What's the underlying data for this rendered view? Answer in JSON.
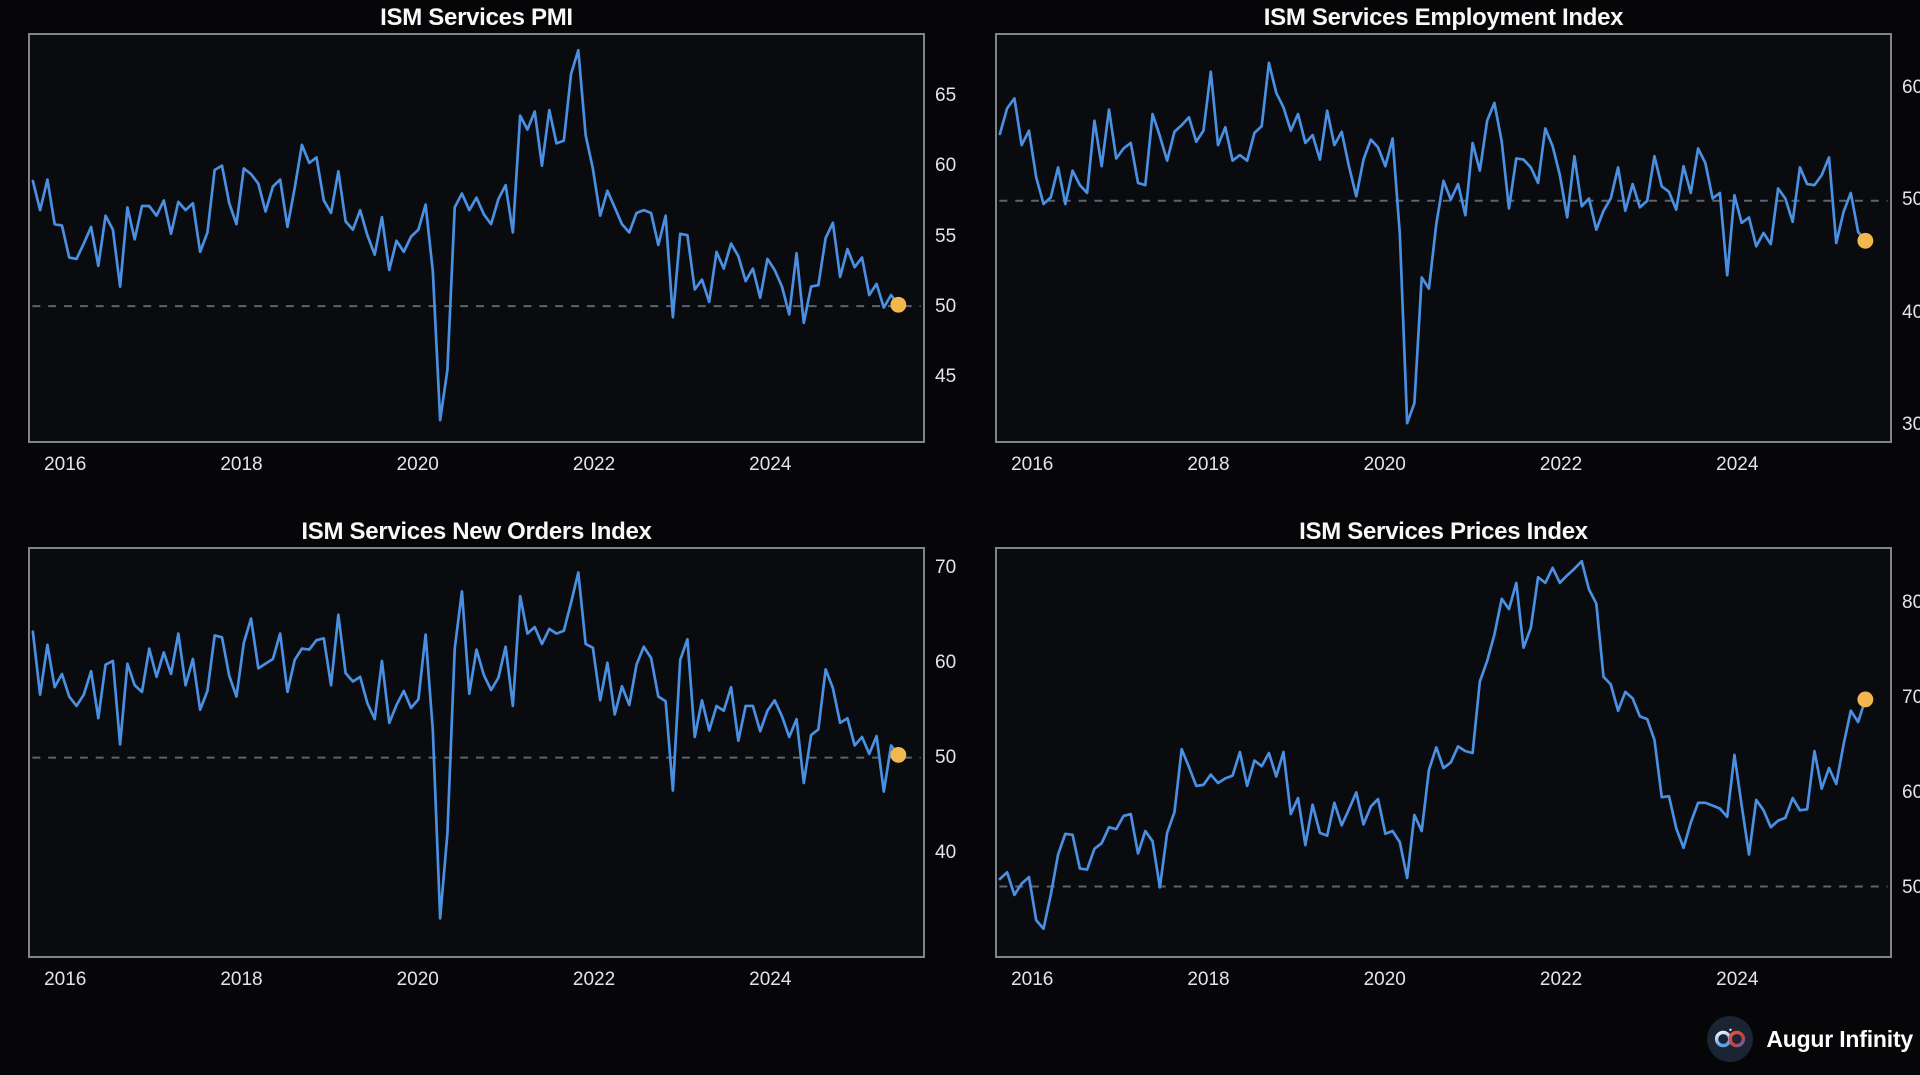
{
  "footer": {
    "brand": "Augur Infinity",
    "logo_icon": "infinity-icon"
  },
  "colors": {
    "page_bg": "#060608",
    "plot_bg": "#0a0b0f",
    "plot_border": "#7e848c",
    "line": "#4a90e2",
    "latest_dot": "#f2b74e",
    "refline": "#5a6472",
    "title_text": "#f8f8f8",
    "tick_text": "#e2e4e8",
    "logo_bg": "#1a2433",
    "logo_left_loop": "#e8eef5",
    "logo_right_loop": "#d9493f"
  },
  "chart_data": [
    {
      "type": "line",
      "title": "ISM Services PMI",
      "x_start": "2015-08",
      "x_end": "2025-07",
      "freq": "monthly",
      "x_tick_years": [
        2016,
        2018,
        2020,
        2022,
        2024
      ],
      "yticks": [
        45,
        50,
        55,
        60,
        65
      ],
      "ylim": [
        40.3,
        69.5
      ],
      "refline": 50,
      "last_value": 50.1,
      "grid": false,
      "legend": false,
      "values": [
        59.0,
        56.9,
        59.1,
        55.9,
        55.8,
        53.5,
        53.4,
        54.5,
        55.7,
        52.9,
        56.5,
        55.5,
        51.4,
        57.1,
        54.8,
        57.2,
        57.2,
        56.5,
        57.6,
        55.2,
        57.5,
        56.9,
        57.4,
        53.9,
        55.3,
        59.8,
        60.1,
        57.4,
        55.9,
        59.9,
        59.5,
        58.8,
        56.8,
        58.6,
        59.1,
        55.7,
        58.5,
        61.6,
        60.3,
        60.7,
        57.6,
        56.7,
        59.7,
        56.1,
        55.5,
        56.9,
        55.1,
        53.7,
        56.4,
        52.6,
        54.7,
        53.9,
        55.0,
        55.5,
        57.3,
        52.5,
        41.8,
        45.4,
        57.1,
        58.1,
        56.9,
        57.8,
        56.6,
        55.9,
        57.7,
        58.7,
        55.3,
        63.7,
        62.7,
        64.0,
        60.1,
        64.1,
        61.7,
        61.9,
        66.7,
        68.4,
        62.3,
        59.9,
        56.5,
        58.3,
        57.1,
        55.9,
        55.3,
        56.7,
        56.9,
        56.7,
        54.4,
        56.5,
        49.2,
        55.2,
        55.1,
        51.2,
        51.9,
        50.3,
        53.9,
        52.7,
        54.5,
        53.6,
        51.8,
        52.7,
        50.6,
        53.4,
        52.6,
        51.4,
        49.4,
        53.8,
        48.8,
        51.4,
        51.5,
        54.9,
        56.0,
        52.1,
        54.1,
        52.8,
        53.5,
        50.8,
        51.6,
        49.9,
        50.8,
        50.1
      ]
    },
    {
      "type": "line",
      "title": "ISM Services Employment Index",
      "x_start": "2015-08",
      "x_end": "2025-07",
      "freq": "monthly",
      "x_tick_years": [
        2016,
        2018,
        2020,
        2022,
        2024
      ],
      "yticks": [
        30,
        40,
        50,
        60
      ],
      "ylim": [
        28.4,
        64.9
      ],
      "refline": 50,
      "last_value": 46.4,
      "grid": false,
      "legend": false,
      "values": [
        56.0,
        58.3,
        59.2,
        55.0,
        56.3,
        52.1,
        49.7,
        50.3,
        53.0,
        49.7,
        52.7,
        51.4,
        50.7,
        57.2,
        53.1,
        58.2,
        53.8,
        54.7,
        55.2,
        51.6,
        51.4,
        57.8,
        55.8,
        53.6,
        56.2,
        56.8,
        57.5,
        55.3,
        56.3,
        61.6,
        55.0,
        56.6,
        53.6,
        54.1,
        53.6,
        56.1,
        56.7,
        62.4,
        59.7,
        58.4,
        56.3,
        57.8,
        55.2,
        55.9,
        53.7,
        58.1,
        55.0,
        56.2,
        53.1,
        50.4,
        53.7,
        55.5,
        54.8,
        53.1,
        55.6,
        47.0,
        30.0,
        31.8,
        43.1,
        42.1,
        47.9,
        51.8,
        50.1,
        51.5,
        48.7,
        55.2,
        52.7,
        57.2,
        58.8,
        55.3,
        49.3,
        53.8,
        53.7,
        53.0,
        51.6,
        56.5,
        54.9,
        52.3,
        48.5,
        54.0,
        49.5,
        50.2,
        47.4,
        49.1,
        50.2,
        53.0,
        49.1,
        51.5,
        49.4,
        50.0,
        54.0,
        51.3,
        50.8,
        49.2,
        53.1,
        50.7,
        54.7,
        53.4,
        50.2,
        50.7,
        43.3,
        50.5,
        48.0,
        48.5,
        45.9,
        47.1,
        46.1,
        51.1,
        50.2,
        48.1,
        53.0,
        51.5,
        51.4,
        52.3,
        53.9,
        46.2,
        49.0,
        50.7,
        47.2,
        46.4
      ]
    },
    {
      "type": "line",
      "title": "ISM Services New Orders Index",
      "x_start": "2015-08",
      "x_end": "2025-07",
      "freq": "monthly",
      "x_tick_years": [
        2016,
        2018,
        2020,
        2022,
        2024
      ],
      "yticks": [
        40,
        50,
        60,
        70
      ],
      "ylim": [
        28.9,
        72.2
      ],
      "refline": 50,
      "last_value": 50.3,
      "grid": false,
      "legend": false,
      "values": [
        63.4,
        56.7,
        62.0,
        57.5,
        58.9,
        56.5,
        55.5,
        56.7,
        59.2,
        54.2,
        59.9,
        60.3,
        51.4,
        60.0,
        57.7,
        57.0,
        61.6,
        58.6,
        61.2,
        58.9,
        63.2,
        57.7,
        60.5,
        55.1,
        57.1,
        63.0,
        62.8,
        58.7,
        56.5,
        62.2,
        64.8,
        59.5,
        60.0,
        60.5,
        63.2,
        57.0,
        60.4,
        61.6,
        61.5,
        62.5,
        62.7,
        57.7,
        65.2,
        59.0,
        58.1,
        58.6,
        55.8,
        54.1,
        60.3,
        53.7,
        55.6,
        57.1,
        55.3,
        56.2,
        63.1,
        52.9,
        32.9,
        41.9,
        61.6,
        67.7,
        56.8,
        61.5,
        58.8,
        57.2,
        58.5,
        61.8,
        55.5,
        67.2,
        63.2,
        63.9,
        62.1,
        63.7,
        63.2,
        63.5,
        66.5,
        69.7,
        62.1,
        61.7,
        56.1,
        60.1,
        54.6,
        57.6,
        55.6,
        59.9,
        61.8,
        60.6,
        56.5,
        56.0,
        46.5,
        60.4,
        62.6,
        52.2,
        56.1,
        52.9,
        55.5,
        55.0,
        57.5,
        51.8,
        55.5,
        55.5,
        52.8,
        55.0,
        56.1,
        54.4,
        52.2,
        54.1,
        47.3,
        52.4,
        53.0,
        59.4,
        57.4,
        53.7,
        54.2,
        51.3,
        52.2,
        50.4,
        52.3,
        46.4,
        51.3,
        50.3
      ]
    },
    {
      "type": "line",
      "title": "ISM Services Prices Index",
      "x_start": "2015-08",
      "x_end": "2025-07",
      "freq": "monthly",
      "x_tick_years": [
        2016,
        2018,
        2020,
        2022,
        2024
      ],
      "yticks": [
        50,
        60,
        70,
        80
      ],
      "ylim": [
        42.6,
        85.9
      ],
      "refline": 50,
      "last_value": 69.9,
      "grid": false,
      "legend": false,
      "values": [
        50.8,
        51.5,
        49.1,
        50.3,
        51.0,
        46.4,
        45.5,
        49.1,
        53.4,
        55.6,
        55.5,
        51.9,
        51.8,
        54.0,
        54.6,
        56.3,
        56.1,
        57.5,
        57.7,
        53.5,
        55.9,
        54.8,
        49.9,
        55.7,
        57.9,
        64.6,
        62.7,
        60.7,
        60.8,
        61.9,
        61.0,
        61.5,
        61.8,
        64.3,
        60.7,
        63.4,
        62.8,
        64.2,
        61.7,
        64.3,
        57.7,
        59.4,
        54.4,
        58.7,
        55.7,
        55.4,
        58.9,
        56.5,
        58.2,
        60.0,
        56.6,
        58.5,
        59.3,
        55.6,
        55.9,
        54.7,
        50.9,
        57.6,
        55.9,
        62.4,
        64.8,
        62.6,
        63.2,
        64.9,
        64.4,
        64.2,
        71.8,
        74.0,
        76.8,
        80.6,
        79.5,
        82.3,
        75.4,
        77.5,
        82.9,
        82.3,
        83.9,
        82.3,
        83.1,
        83.8,
        84.6,
        81.6,
        80.1,
        72.3,
        71.5,
        68.7,
        70.7,
        70.0,
        68.1,
        67.8,
        65.6,
        59.5,
        59.6,
        56.2,
        54.1,
        56.8,
        58.9,
        58.9,
        58.6,
        58.3,
        57.4,
        64.0,
        58.6,
        53.4,
        59.2,
        58.1,
        56.3,
        57.0,
        57.3,
        59.4,
        58.1,
        58.2,
        64.4,
        60.4,
        62.6,
        60.9,
        65.1,
        68.7,
        67.5,
        69.9
      ]
    }
  ]
}
